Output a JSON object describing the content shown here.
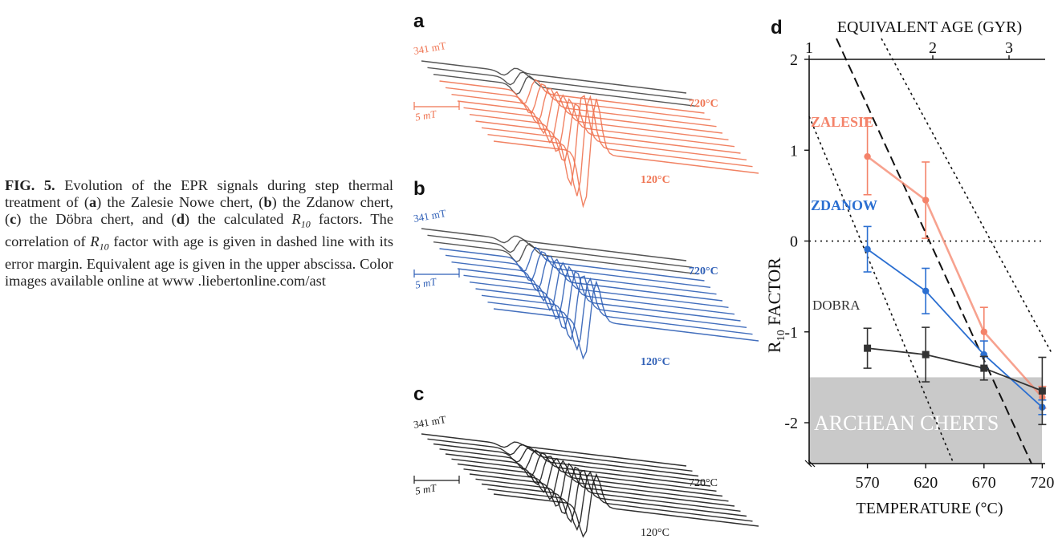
{
  "caption": {
    "fig_label": "FIG. 5.",
    "t1": " Evolution of the EPR signals during step thermal treatment of (",
    "a": "a",
    "t2": ") the Zalesie Nowe chert, (",
    "b": "b",
    "t3": ") the Zdanow chert, (",
    "c": "c",
    "t4": ") the Döbra chert, and (",
    "d": "d",
    "t5": ") the calculated ",
    "r_main": "R",
    "r_sub": "10",
    "t6": " factors. The correlation of ",
    "t7": " factor with age is given in dashed line with its error margin. Equivalent age is given in the upper abscissa. Color images available online at www .liebertonline.com/ast"
  },
  "panels": [
    {
      "letter": "a",
      "field_label": "341 mT",
      "scale_label": "5 mT",
      "top_label": "720°C",
      "bottom_label": "120°C",
      "color": "#ef7452"
    },
    {
      "letter": "b",
      "field_label": "341 mT",
      "scale_label": "5 mT",
      "top_label": "720°C",
      "bottom_label": "120°C",
      "color": "#2f5fb6"
    },
    {
      "letter": "c",
      "field_label": "341 mT",
      "scale_label": "5 mT",
      "top_label": "720°C",
      "bottom_label": "120°C",
      "color": "#1a1a1a"
    }
  ],
  "chart_data": {
    "type": "line",
    "panel_letter": "d",
    "top_xlabel": "EQUIVALENT AGE (GYR)",
    "top_ticks": [
      "1",
      "2",
      "3"
    ],
    "xlabel": "TEMPERATURE (°C)",
    "ylabel_main": "R",
    "ylabel_sub": "10",
    "ylabel_rest": " FACTOR",
    "x": [
      570,
      620,
      670,
      720
    ],
    "x_tick_labels": [
      "570",
      "620",
      "670",
      "720"
    ],
    "xlim": [
      520,
      728
    ],
    "ylim": [
      -2.45,
      2.0
    ],
    "y_ticks": [
      2,
      1,
      0,
      -1,
      -2
    ],
    "y_tick_labels": [
      "2",
      "1",
      "0",
      "-1",
      "-2"
    ],
    "series": [
      {
        "name": "ZALESIE",
        "color": "#f4836a",
        "marker": "circle",
        "values": [
          0.93,
          0.45,
          -1.0,
          -1.72
        ],
        "errors": [
          0.42,
          0.42,
          0.27,
          0.12
        ]
      },
      {
        "name": "ZDANOW",
        "color": "#2b6fd1",
        "marker": "circle",
        "values": [
          -0.09,
          -0.55,
          -1.25,
          -1.83
        ],
        "errors": [
          0.25,
          0.25,
          0.15,
          0.08
        ]
      },
      {
        "name": "DOBRA",
        "color": "#333333",
        "marker": "square",
        "values": [
          -1.18,
          -1.25,
          -1.4,
          -1.65
        ],
        "errors": [
          0.22,
          0.3,
          0.13,
          0.37
        ]
      }
    ],
    "archean_band": {
      "label": "ARCHEAN CHERTS",
      "y_range": [
        -2.45,
        -1.5
      ]
    },
    "zero_line": 0
  }
}
